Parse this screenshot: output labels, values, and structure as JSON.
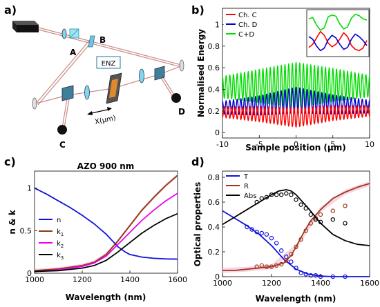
{
  "figure": {
    "panel_a": {
      "label": "a)",
      "labels": {
        "A": "A",
        "B": "B",
        "C": "C",
        "D": "D",
        "enz": "ENZ",
        "x": "X(μm)"
      }
    },
    "panel_b": {
      "label": "b)"
    },
    "panel_c": {
      "label": "c)"
    },
    "panel_d": {
      "label": "d)"
    }
  },
  "chart_data": [
    {
      "id": "b",
      "type": "line",
      "xlabel": "Sample position (μm)",
      "ylabel": "Normalised Energy",
      "xlim": [
        -10,
        10
      ],
      "ylim": [
        -0.05,
        1.15
      ],
      "xticks": [
        -10,
        -5,
        0,
        5,
        10
      ],
      "yticks": [
        0,
        0.2,
        0.4,
        0.6,
        0.8,
        1
      ],
      "legend_position": "top-left",
      "oscillation_period_um": 0.5,
      "series": [
        {
          "name": "Ch. C",
          "color": "#ff0000",
          "center": [
            [
              -10,
              0.19
            ],
            [
              -5,
              0.17
            ],
            [
              0,
              0.14
            ],
            [
              5,
              0.18
            ],
            [
              10,
              0.2
            ]
          ],
          "amplitude": [
            [
              -10,
              0.05
            ],
            [
              0,
              0.09
            ],
            [
              10,
              0.05
            ]
          ]
        },
        {
          "name": "Ch. D",
          "color": "#0000cc",
          "center": [
            [
              -10,
              0.23
            ],
            [
              -5,
              0.25
            ],
            [
              0,
              0.3
            ],
            [
              5,
              0.26
            ],
            [
              10,
              0.24
            ]
          ],
          "amplitude": [
            [
              -10,
              0.06
            ],
            [
              0,
              0.12
            ],
            [
              10,
              0.06
            ]
          ]
        },
        {
          "name": "C+D",
          "color": "#00dd00",
          "center": [
            [
              -10,
              0.42
            ],
            [
              -5,
              0.43
            ],
            [
              0,
              0.44
            ],
            [
              5,
              0.44
            ],
            [
              10,
              0.43
            ]
          ],
          "amplitude": [
            [
              -10,
              0.1
            ],
            [
              0,
              0.21
            ],
            [
              10,
              0.1
            ]
          ]
        }
      ],
      "inset": {
        "series": [
          {
            "name": "Ch. C",
            "color": "#ff0000",
            "values": [
              0.45,
              0.5,
              0.6,
              0.7,
              0.64,
              0.52,
              0.46,
              0.5,
              0.58,
              0.68,
              0.62,
              0.48,
              0.42,
              0.4,
              0.44,
              0.56
            ]
          },
          {
            "name": "Ch. D",
            "color": "#0000cc",
            "values": [
              0.62,
              0.58,
              0.47,
              0.4,
              0.44,
              0.57,
              0.64,
              0.6,
              0.5,
              0.42,
              0.45,
              0.58,
              0.66,
              0.62,
              0.56,
              0.48
            ]
          },
          {
            "name": "C+D",
            "color": "#00dd00",
            "values": [
              0.9,
              0.92,
              0.8,
              0.72,
              0.76,
              0.93,
              0.96,
              0.94,
              0.82,
              0.74,
              0.77,
              0.91,
              0.97,
              0.95,
              0.9,
              0.88
            ]
          }
        ]
      }
    },
    {
      "id": "c",
      "type": "line",
      "title": "AZO 900 nm",
      "xlabel": "Wavelength (nm)",
      "ylabel": "n & k",
      "xlim": [
        1000,
        1600
      ],
      "ylim": [
        0,
        1.2
      ],
      "xticks": [
        1000,
        1200,
        1400,
        1600
      ],
      "yticks": [
        0,
        0.5,
        1
      ],
      "ytick_labels": [
        "0",
        "0.5",
        "1"
      ],
      "legend_position": "middle-left",
      "series": [
        {
          "name": "n",
          "color": "#1010e0",
          "x": [
            1000,
            1050,
            1100,
            1150,
            1200,
            1250,
            1300,
            1330,
            1350,
            1380,
            1400,
            1450,
            1500,
            1550,
            1600
          ],
          "values": [
            1.0,
            0.93,
            0.85,
            0.77,
            0.68,
            0.58,
            0.46,
            0.37,
            0.31,
            0.25,
            0.22,
            0.19,
            0.175,
            0.168,
            0.165
          ]
        },
        {
          "name": "k1",
          "label_base": "k",
          "label_sub": "1",
          "color": "#8b3a0f",
          "x": [
            1000,
            1100,
            1200,
            1250,
            1300,
            1350,
            1400,
            1450,
            1500,
            1550,
            1600
          ],
          "values": [
            0.03,
            0.05,
            0.09,
            0.13,
            0.22,
            0.38,
            0.56,
            0.74,
            0.89,
            1.03,
            1.15
          ]
        },
        {
          "name": "k2",
          "label_base": "k",
          "label_sub": "2",
          "color": "#ee00ee",
          "x": [
            1000,
            1100,
            1200,
            1250,
            1300,
            1350,
            1400,
            1450,
            1500,
            1550,
            1600
          ],
          "values": [
            0.02,
            0.04,
            0.08,
            0.12,
            0.2,
            0.34,
            0.48,
            0.62,
            0.74,
            0.85,
            0.94
          ]
        },
        {
          "name": "k3",
          "label_base": "k",
          "label_sub": "3",
          "color": "#000000",
          "x": [
            1000,
            1100,
            1200,
            1250,
            1300,
            1350,
            1400,
            1450,
            1500,
            1550,
            1600
          ],
          "values": [
            0.02,
            0.03,
            0.06,
            0.09,
            0.15,
            0.25,
            0.36,
            0.47,
            0.56,
            0.64,
            0.7
          ]
        }
      ],
      "band": {
        "color": "#f4c6dc",
        "x": [
          1000,
          1100,
          1200,
          1250,
          1300,
          1350,
          1400,
          1450,
          1500,
          1550,
          1600
        ],
        "values": [
          0.03,
          0.05,
          0.09,
          0.13,
          0.22,
          0.38,
          0.56,
          0.74,
          0.89,
          1.03,
          1.15
        ]
      }
    },
    {
      "id": "d",
      "type": "line",
      "xlabel": "Wavelength (nm)",
      "ylabel": "Optical properties",
      "xlim": [
        1000,
        1600
      ],
      "ylim": [
        0,
        0.85
      ],
      "xticks": [
        1000,
        1200,
        1400,
        1600
      ],
      "yticks": [
        0,
        0.2,
        0.4,
        0.6,
        0.8
      ],
      "legend_position": "top-left",
      "series": [
        {
          "name": "T",
          "color": "#1010e0",
          "x": [
            1000,
            1050,
            1100,
            1150,
            1200,
            1250,
            1300,
            1350,
            1400,
            1450,
            1500,
            1550,
            1600
          ],
          "values": [
            0.53,
            0.47,
            0.41,
            0.34,
            0.25,
            0.14,
            0.06,
            0.02,
            0.005,
            0.0,
            0.0,
            0.0,
            0.0
          ],
          "points_x": [
            1100,
            1120,
            1140,
            1160,
            1180,
            1200,
            1220,
            1240,
            1260,
            1280,
            1300,
            1320,
            1340,
            1360,
            1380,
            1400,
            1450,
            1500
          ],
          "points_y": [
            0.4,
            0.38,
            0.36,
            0.35,
            0.34,
            0.31,
            0.27,
            0.21,
            0.16,
            0.12,
            0.07,
            0.03,
            0.02,
            0.01,
            0.01,
            0.0,
            0.0,
            0.0
          ]
        },
        {
          "name": "R",
          "color": "#a0341a",
          "x": [
            1000,
            1050,
            1100,
            1150,
            1200,
            1250,
            1280,
            1300,
            1330,
            1360,
            1400,
            1450,
            1500,
            1550,
            1600
          ],
          "values": [
            0.05,
            0.05,
            0.06,
            0.07,
            0.08,
            0.11,
            0.17,
            0.24,
            0.35,
            0.45,
            0.54,
            0.63,
            0.68,
            0.72,
            0.75
          ],
          "points_x": [
            1140,
            1160,
            1180,
            1200,
            1220,
            1240,
            1260,
            1280,
            1300,
            1320,
            1340,
            1360,
            1380,
            1400,
            1450,
            1500
          ],
          "points_y": [
            0.08,
            0.09,
            0.08,
            0.08,
            0.09,
            0.1,
            0.13,
            0.18,
            0.24,
            0.3,
            0.37,
            0.43,
            0.47,
            0.5,
            0.53,
            0.57
          ]
        },
        {
          "name": "Abs",
          "color": "#000000",
          "x": [
            1000,
            1050,
            1100,
            1150,
            1200,
            1230,
            1260,
            1280,
            1300,
            1350,
            1400,
            1450,
            1500,
            1550,
            1600
          ],
          "values": [
            0.42,
            0.48,
            0.54,
            0.6,
            0.66,
            0.69,
            0.7,
            0.69,
            0.66,
            0.55,
            0.43,
            0.34,
            0.29,
            0.26,
            0.25
          ],
          "points_x": [
            1140,
            1160,
            1180,
            1200,
            1220,
            1240,
            1260,
            1280,
            1300,
            1320,
            1340,
            1360,
            1380,
            1400,
            1450,
            1500
          ],
          "points_y": [
            0.6,
            0.63,
            0.64,
            0.66,
            0.66,
            0.66,
            0.67,
            0.66,
            0.62,
            0.58,
            0.55,
            0.5,
            0.46,
            0.44,
            0.46,
            0.43
          ]
        }
      ],
      "band": {
        "color": "#f4c6dc",
        "x": [
          1000,
          1100,
          1200,
          1300,
          1400,
          1500,
          1600
        ],
        "values": [
          0.05,
          0.06,
          0.08,
          0.24,
          0.54,
          0.68,
          0.75
        ]
      }
    }
  ]
}
